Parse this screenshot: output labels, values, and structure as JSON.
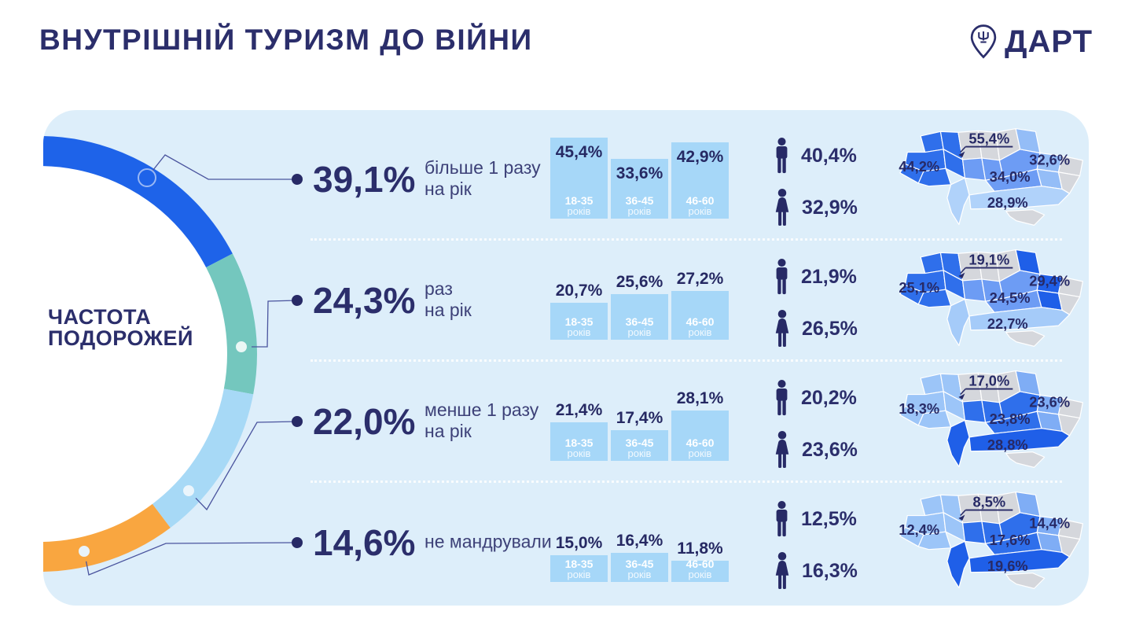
{
  "header": {
    "title": "ВНУТРІШНІЙ ТУРИЗМ ДО ВІЙНИ",
    "logo_text": "ДАРТ"
  },
  "donut": {
    "label": "ЧАСТОТА\nПОДОРОЖЕЙ",
    "segments": [
      {
        "label": "більше 1 разу на рік",
        "value": "39,1%",
        "color": "#1e63e9"
      },
      {
        "label": "раз на рік",
        "value": "24,3%",
        "color": "#74c7be"
      },
      {
        "label": "менше 1 разу на рік",
        "value": "22,0%",
        "color": "#a7d9f6"
      },
      {
        "label": "не мандрували",
        "value": "14,6%",
        "color": "#f9a640"
      }
    ]
  },
  "age_word": "років",
  "palette": {
    "card_bg": "#ddeefa",
    "navy": "#2b2e6b",
    "bar_fill": "#a6d7f8",
    "map_gray": "#d5d7dc"
  },
  "rows": [
    {
      "pct": "39,1%",
      "desc": "більше 1 разу\nна рік",
      "bars": [
        {
          "label": "45,4%",
          "v": 45.4,
          "age": "18-35"
        },
        {
          "label": "33,6%",
          "v": 33.6,
          "age": "36-45"
        },
        {
          "label": "42,9%",
          "v": 42.9,
          "age": "46-60"
        }
      ],
      "male": "40,4%",
      "female": "32,9%",
      "map": {
        "west": "44,2%",
        "north": "55,4%",
        "center": "34,0%",
        "east": "32,6%",
        "south": "28,9%",
        "colors": {
          "west": "#2f6feb",
          "center": "#6d9cf4",
          "east": "#94bdf7",
          "south": "#b0d2fa"
        }
      }
    },
    {
      "pct": "24,3%",
      "desc": "раз\nна рік",
      "bars": [
        {
          "label": "20,7%",
          "v": 20.7,
          "age": "18-35"
        },
        {
          "label": "25,6%",
          "v": 25.6,
          "age": "36-45"
        },
        {
          "label": "27,2%",
          "v": 27.2,
          "age": "46-60"
        }
      ],
      "male": "21,9%",
      "female": "26,5%",
      "map": {
        "west": "25,1%",
        "north": "19,1%",
        "center": "24,5%",
        "east": "29,4%",
        "south": "22,7%",
        "colors": {
          "west": "#2f6feb",
          "center": "#6d9cf4",
          "east": "#1f5fe8",
          "south": "#a5cbf9"
        }
      }
    },
    {
      "pct": "22,0%",
      "desc": "менше 1 разу\nна рік",
      "bars": [
        {
          "label": "21,4%",
          "v": 21.4,
          "age": "18-35"
        },
        {
          "label": "17,4%",
          "v": 17.4,
          "age": "36-45"
        },
        {
          "label": "28,1%",
          "v": 28.1,
          "age": "46-60"
        }
      ],
      "male": "20,2%",
      "female": "23,6%",
      "map": {
        "west": "18,3%",
        "north": "17,0%",
        "center": "23,8%",
        "east": "23,6%",
        "south": "28,8%",
        "colors": {
          "west": "#9cc5f8",
          "center": "#2f6feb",
          "east": "#7fadf5",
          "south": "#1f5fe8"
        }
      }
    },
    {
      "pct": "14,6%",
      "desc": "не мандрували",
      "bars": [
        {
          "label": "15,0%",
          "v": 15.0,
          "age": "18-35"
        },
        {
          "label": "16,4%",
          "v": 16.4,
          "age": "36-45"
        },
        {
          "label": "11,8%",
          "v": 11.8,
          "age": "46-60"
        }
      ],
      "male": "12,5%",
      "female": "16,3%",
      "map": {
        "west": "12,4%",
        "north": "8,5%",
        "center": "17,6%",
        "east": "14,4%",
        "south": "19,6%",
        "colors": {
          "west": "#9cc5f8",
          "center": "#2f6feb",
          "east": "#7fadf5",
          "south": "#1f5fe8"
        }
      }
    }
  ],
  "chart_data": [
    {
      "type": "pie",
      "title": "ЧАСТОТА ПОДОРОЖЕЙ",
      "categories": [
        "більше 1 разу на рік",
        "раз на рік",
        "менше 1 разу на рік",
        "не мандрували"
      ],
      "values": [
        39.1,
        24.3,
        22.0,
        14.6
      ],
      "legend_position": "left"
    },
    {
      "type": "bar",
      "title": "Частота подорожей за віковими групами (%)",
      "categories": [
        "18-35 років",
        "36-45 років",
        "46-60 років"
      ],
      "series": [
        {
          "name": "більше 1 разу на рік",
          "values": [
            45.4,
            33.6,
            42.9
          ]
        },
        {
          "name": "раз на рік",
          "values": [
            20.7,
            25.6,
            27.2
          ]
        },
        {
          "name": "менше 1 разу на рік",
          "values": [
            21.4,
            17.4,
            28.1
          ]
        },
        {
          "name": "не мандрували",
          "values": [
            15.0,
            16.4,
            11.8
          ]
        }
      ],
      "ylim": [
        0,
        50
      ]
    },
    {
      "type": "bar",
      "title": "Частота подорожей за статтю (%)",
      "categories": [
        "чоловіки",
        "жінки"
      ],
      "series": [
        {
          "name": "більше 1 разу на рік",
          "values": [
            40.4,
            32.9
          ]
        },
        {
          "name": "раз на рік",
          "values": [
            21.9,
            26.5
          ]
        },
        {
          "name": "менше 1 разу на рік",
          "values": [
            20.2,
            23.6
          ]
        },
        {
          "name": "не мандрували",
          "values": [
            12.5,
            16.3
          ]
        }
      ]
    },
    {
      "type": "heatmap",
      "title": "Частота подорожей за макрорегіонами України (%)",
      "categories": [
        "захід",
        "північ (Київ)",
        "центр",
        "схід",
        "південь"
      ],
      "series": [
        {
          "name": "більше 1 разу на рік",
          "values": [
            44.2,
            55.4,
            34.0,
            32.6,
            28.9
          ]
        },
        {
          "name": "раз на рік",
          "values": [
            25.1,
            19.1,
            24.5,
            29.4,
            22.7
          ]
        },
        {
          "name": "менше 1 разу на рік",
          "values": [
            18.3,
            17.0,
            23.8,
            23.6,
            28.8
          ]
        },
        {
          "name": "не мандрували",
          "values": [
            12.4,
            8.5,
            17.6,
            14.4,
            19.6
          ]
        }
      ]
    }
  ]
}
